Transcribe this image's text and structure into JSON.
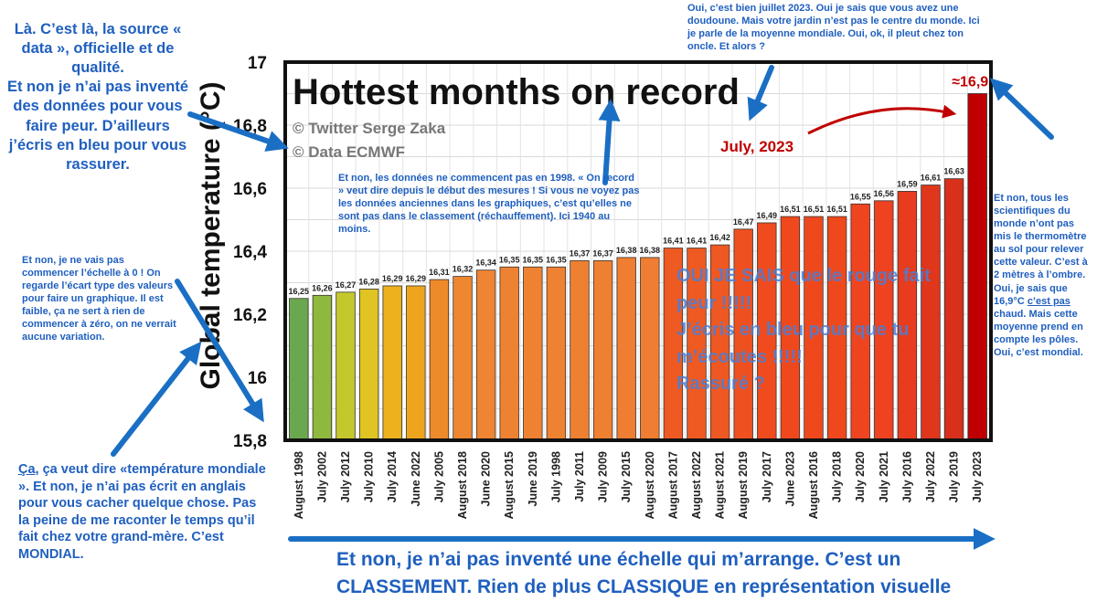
{
  "chart_data": {
    "type": "bar",
    "title": "Hottest months on record",
    "credits": [
      "© Twitter Serge Zaka",
      "© Data ECMWF"
    ],
    "ylabel": "Global temperature (°C)",
    "ylim": [
      15.8,
      17.0
    ],
    "yticks": [
      "15,8",
      "16",
      "16,2",
      "16,4",
      "16,6",
      "16,8",
      "17"
    ],
    "categories": [
      "August 1998",
      "July 2002",
      "July 2012",
      "July 2010",
      "July 2014",
      "June 2022",
      "July 2005",
      "August 2018",
      "June 2020",
      "August 2015",
      "June 2019",
      "July 1998",
      "July 2011",
      "July 2009",
      "July 2015",
      "August 2020",
      "August 2017",
      "August 2022",
      "August 2021",
      "August 2019",
      "July 2017",
      "June 2023",
      "August 2016",
      "July 2018",
      "July 2020",
      "July 2021",
      "July 2016",
      "July 2022",
      "July 2019",
      "July 2023"
    ],
    "values": [
      16.25,
      16.26,
      16.27,
      16.28,
      16.29,
      16.29,
      16.31,
      16.32,
      16.34,
      16.35,
      16.35,
      16.35,
      16.37,
      16.37,
      16.38,
      16.38,
      16.41,
      16.41,
      16.42,
      16.47,
      16.49,
      16.51,
      16.51,
      16.51,
      16.55,
      16.56,
      16.59,
      16.61,
      16.63,
      16.9
    ],
    "value_labels": [
      "16,25",
      "16,26",
      "16,27",
      "16,28",
      "16,29",
      "16,29",
      "16,31",
      "16,32",
      "16,34",
      "16,35",
      "16,35",
      "16,35",
      "16,37",
      "16,37",
      "16,38",
      "16,38",
      "16,41",
      "16,41",
      "16,42",
      "16,47",
      "16,49",
      "16,51",
      "16,51",
      "16,51",
      "16,55",
      "16,56",
      "16,59",
      "16,61",
      "16,63",
      "≈16,9"
    ],
    "colors": [
      "#6aa84f",
      "#8fb83e",
      "#c5c82c",
      "#dfc423",
      "#ecb11c",
      "#eea51d",
      "#ee8a2a",
      "#ef8630",
      "#ef8432",
      "#ef8232",
      "#ef8232",
      "#ef8232",
      "#ef8032",
      "#ef8032",
      "#ef7d32",
      "#ef7d32",
      "#ef5a22",
      "#ef5a22",
      "#ef5822",
      "#ef5020",
      "#ef4b1e",
      "#f0481d",
      "#f0481d",
      "#f0481d",
      "#ef4420",
      "#ee4220",
      "#e73c1e",
      "#e0361c",
      "#d8301a",
      "#c00000"
    ],
    "highlight_label": "July, 2023",
    "grid": true,
    "legend": "none"
  },
  "annotations": {
    "top_left": "Là. C’est là, la source « data », officielle et de qualité.\nEt non je n’ai pas inventé des données pour vous faire peur. D’ailleurs j’écris en bleu pour vous rassurer.",
    "left_mid": "Et non, je ne vais pas commencer l’échelle à 0 ! On regarde l’écart type des valeurs pour faire un graphique. Il est faible, ça ne sert à rien de commencer à zéro, on ne verrait aucune variation.",
    "bottom_left_lead": "Ça",
    "bottom_left_rest": ", ça veut dire «température mondiale ». Et non, je n’ai pas écrit en anglais pour vous cacher quelque chose. Pas la peine de me raconter le temps qu’il fait chez votre grand-mère. C’est MONDIAL.",
    "top_center": "Oui, c’est bien juillet 2023. Oui je sais que vous avez une doudoune. Mais votre jardin n’est pas le centre du monde. Ici je parle de la moyenne mondiale. Oui, ok, il pleut chez ton oncle. Et alors ?",
    "center": "Et non, les données ne commencent pas en 1998. « On record » veut dire depuis le début des mesures ! Si vous ne voyez pas les données anciennes dans les graphiques, c’est qu’elles ne sont pas dans le classement (réchauffement). Ici 1940 au moins.",
    "right_pre": "Et non, tous les scientifiques du monde n’ont pas mis le thermomètre au sol pour relever cette valeur. C’est à 2 mètres à l’ombre. Oui, je sais que 16,9°C ",
    "right_underlined": "c’est pas",
    "right_post": " chaud. Mais cette moyenne prend en compte les pôles. Oui, c’est mondial.",
    "overlay": "OUI JE SAIS que le rouge fait peur !!!!!\nJ’écris en bleu pour que tu m’écoutes !!!!!\nRassuré ?",
    "bottom": "Et non, je n’ai pas inventé une échelle qui m’arrange. C’est un CLASSEMENT. Rien de plus CLASSIQUE en représentation visuelle"
  },
  "colors": {
    "note_blue": "#1f5fbf",
    "arrow_blue": "#1a6fc4",
    "record_red": "#c00000"
  }
}
